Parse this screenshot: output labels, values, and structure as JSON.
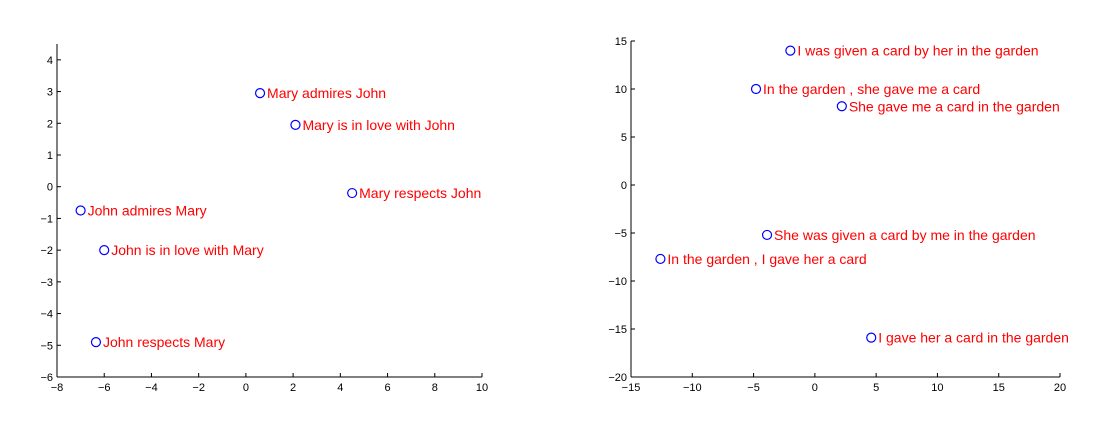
{
  "chart_data": [
    {
      "type": "scatter",
      "title": "",
      "xlabel": "",
      "ylabel": "",
      "xlim": [
        -8,
        10
      ],
      "ylim": [
        -6,
        4.5
      ],
      "xticks": [
        -8,
        -6,
        -4,
        -2,
        0,
        2,
        4,
        6,
        8,
        10
      ],
      "yticks": [
        -6,
        -5,
        -4,
        -3,
        -2,
        -1,
        0,
        1,
        2,
        3,
        4
      ],
      "grid": false,
      "legend": "none",
      "marker": "open-circle",
      "marker_color": "#0000ff",
      "label_color": "#ff0000",
      "points": [
        {
          "label": "Mary admires John",
          "x": 0.6,
          "y": 2.95
        },
        {
          "label": "Mary is in love with John",
          "x": 2.1,
          "y": 1.95
        },
        {
          "label": "Mary respects John",
          "x": 4.5,
          "y": -0.2
        },
        {
          "label": "John admires Mary",
          "x": -7.0,
          "y": -0.75
        },
        {
          "label": "John is in love with Mary",
          "x": -6.0,
          "y": -2.0
        },
        {
          "label": "John respects Mary",
          "x": -6.35,
          "y": -4.9
        }
      ]
    },
    {
      "type": "scatter",
      "title": "",
      "xlabel": "",
      "ylabel": "",
      "xlim": [
        -15,
        20
      ],
      "ylim": [
        -20,
        15
      ],
      "xticks": [
        -15,
        -10,
        -5,
        0,
        5,
        10,
        15,
        20
      ],
      "yticks": [
        -20,
        -15,
        -10,
        -5,
        0,
        5,
        10,
        15
      ],
      "grid": false,
      "legend": "none",
      "marker": "open-circle",
      "marker_color": "#0000ff",
      "label_color": "#ff0000",
      "points": [
        {
          "label": "I was given a card by her in the garden",
          "x": -2.0,
          "y": 14.0
        },
        {
          "label": "In the garden , she gave me a card",
          "x": -4.8,
          "y": 10.0
        },
        {
          "label": "She gave me a card in the garden",
          "x": 2.2,
          "y": 8.2
        },
        {
          "label": "She was given a card by me in the garden",
          "x": -3.9,
          "y": -5.2
        },
        {
          "label": "In the garden , I gave her a card",
          "x": -12.6,
          "y": -7.7
        },
        {
          "label": "I gave her a card in the garden",
          "x": 4.6,
          "y": -15.9
        }
      ]
    }
  ]
}
